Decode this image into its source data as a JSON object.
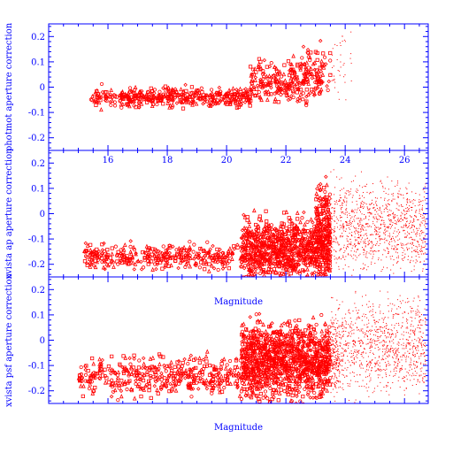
{
  "chart_data": [
    {
      "type": "scatter",
      "ylabel": "photmot aperture correction",
      "xlim": [
        14,
        26.8
      ],
      "ylim": [
        -0.25,
        0.25
      ],
      "x_ticks": [
        "16",
        "18",
        "20",
        "22",
        "24",
        "26"
      ],
      "y_ticks": [
        "0.2",
        "0.1",
        "0",
        "-0.1",
        "-0.2"
      ],
      "marker_color": "#ff0000",
      "frame_color": "#0000ff",
      "seed": 11,
      "clusters": [
        {
          "n": 430,
          "x": [
            15.4,
            20.8
          ],
          "y_center": -0.04,
          "y_spread": 0.11
        },
        {
          "n": 260,
          "x": [
            20.8,
            23.2
          ],
          "y_center": 0.02,
          "y_spread": 0.24
        },
        {
          "n": 90,
          "x": [
            22.5,
            24.2
          ],
          "y_center": 0.08,
          "y_spread": 0.32
        }
      ]
    },
    {
      "type": "scatter",
      "ylabel": "xvista ap aperture correction",
      "xlabel": "Magnitude",
      "xlim": [
        14,
        26.8
      ],
      "ylim": [
        -0.25,
        0.25
      ],
      "x_ticks": [],
      "y_ticks": [
        "0.2",
        "0.1",
        "0",
        "-0.1",
        "-0.2"
      ],
      "marker_color": "#ff0000",
      "frame_color": "#0000ff",
      "seed": 23,
      "clusters": [
        {
          "n": 360,
          "x": [
            15.2,
            20.5
          ],
          "y_center": -0.17,
          "y_spread": 0.14
        },
        {
          "n": 900,
          "x": [
            20.5,
            23.5
          ],
          "y_center": -0.14,
          "y_spread": 0.34
        },
        {
          "n": 1200,
          "x": [
            23.0,
            26.7
          ],
          "y_center": -0.05,
          "y_spread": 0.5
        }
      ]
    },
    {
      "type": "scatter",
      "ylabel": "xvista psf aperture correction",
      "xlabel": "Magnitude",
      "xlim": [
        14,
        26.8
      ],
      "ylim": [
        -0.25,
        0.25
      ],
      "x_ticks": [],
      "y_ticks": [
        "0.2",
        "0.1",
        "0",
        "-0.1",
        "-0.2"
      ],
      "marker_color": "#ff0000",
      "frame_color": "#0000ff",
      "seed": 37,
      "clusters": [
        {
          "n": 420,
          "x": [
            15.0,
            20.5
          ],
          "y_center": -0.14,
          "y_spread": 0.22
        },
        {
          "n": 1300,
          "x": [
            20.5,
            23.8
          ],
          "y_center": -0.08,
          "y_spread": 0.42
        },
        {
          "n": 1000,
          "x": [
            23.5,
            26.7
          ],
          "y_center": -0.02,
          "y_spread": 0.5
        }
      ]
    }
  ]
}
